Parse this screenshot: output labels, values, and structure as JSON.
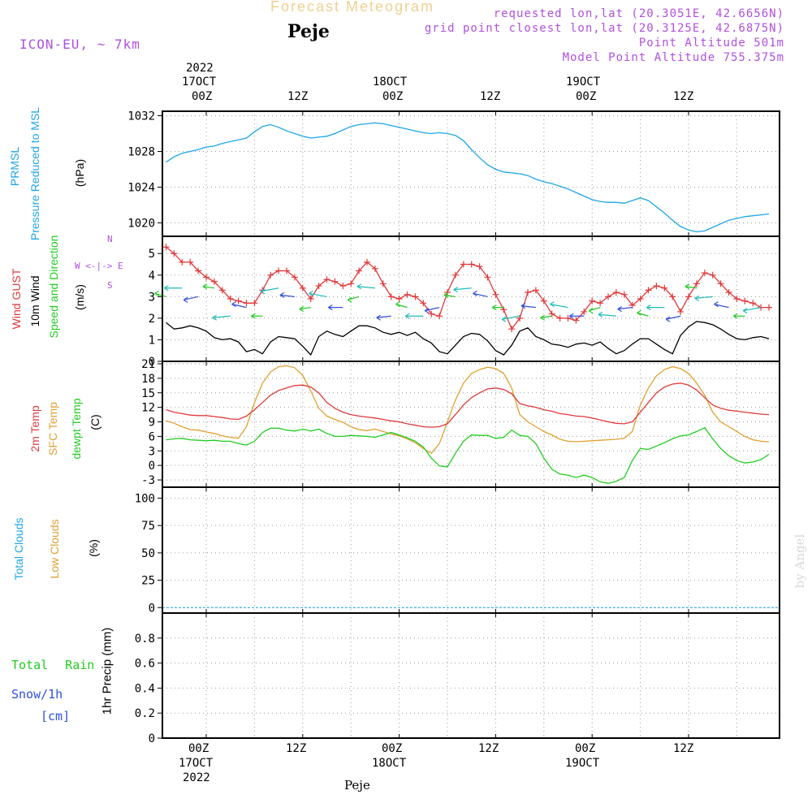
{
  "header": {
    "title": "Forecast Meteogram",
    "station": "Peje",
    "model": "ICON-EU, ~ 7km",
    "requested": "requested lon,lat (20.3051E, 42.6656N)",
    "grid_point": "grid point closest lon,lat (20.3125E, 42.6875N)",
    "point_alt": "Point Altitude 501m",
    "model_alt": "Model Point Altitude 755.375m",
    "footer_station": "Peje",
    "watermark": "by Angel"
  },
  "time_axis": {
    "top_year": "2022",
    "bottom_year": "2022",
    "labels": [
      {
        "hour": 0,
        "hz": "00Z",
        "date": "17OCT"
      },
      {
        "hour": 12,
        "hz": "12Z",
        "date": ""
      },
      {
        "hour": 24,
        "hz": "00Z",
        "date": "18OCT"
      },
      {
        "hour": 36,
        "hz": "12Z",
        "date": ""
      },
      {
        "hour": 48,
        "hz": "00Z",
        "date": "19OCT"
      },
      {
        "hour": 60,
        "hz": "12Z",
        "date": ""
      }
    ]
  },
  "colors": {
    "pressure": "#1ea6e6",
    "gust": "#e0393b",
    "wind": "#000000",
    "temp2m": "#e0393b",
    "sfc": "#e0a030",
    "dewpt": "#22cc22",
    "total_cloud": "#1ea6e6",
    "low_cloud": "#e0a030",
    "purple": "#b050e0"
  },
  "panels": {
    "pressure": {
      "l1": "PRMSL",
      "l2": "Pressure Reduced to MSL",
      "unit": "(hPa)"
    },
    "wind": {
      "l1": "Wind GUST",
      "l2": "10m Wind",
      "l3": "Speed and Direction",
      "unit": "(m/s)",
      "compass_ew": "W <-|-> E",
      "compass_n": "N",
      "compass_s": "S"
    },
    "temp": {
      "l1": "2m Temp",
      "l2": "SFC Temp",
      "l3": "dewpt Temp",
      "unit": "(C)"
    },
    "cloud": {
      "l1": "Total Clouds",
      "l2": "Low Clouds",
      "unit": "(%)"
    },
    "precip": {
      "rain": "Total Rain",
      "snow": "Snow/1h",
      "snow_unit": "[cm]",
      "axis": "1hr Precip (mm)"
    }
  },
  "chart_data": [
    {
      "type": "line",
      "title": "PRMSL Pressure Reduced to MSL",
      "ylabel": "(hPa)",
      "ylim": [
        1018.5,
        1032.5
      ],
      "yticks": [
        1020,
        1024,
        1028,
        1032
      ],
      "x": [
        -5,
        -4,
        -3,
        -2,
        -1,
        0,
        1,
        2,
        3,
        4,
        5,
        6,
        7,
        8,
        9,
        10,
        11,
        12,
        13,
        14,
        15,
        16,
        17,
        18,
        19,
        20,
        21,
        22,
        23,
        24,
        25,
        26,
        27,
        28,
        29,
        30,
        31,
        32,
        33,
        34,
        35,
        36,
        37,
        38,
        39,
        40,
        41,
        42,
        43,
        44,
        45,
        46,
        47,
        48,
        49,
        50,
        51,
        52,
        53,
        54,
        55,
        56,
        57,
        58,
        59,
        60,
        61,
        62,
        63,
        64,
        65,
        66,
        67,
        68,
        69,
        70
      ],
      "series": [
        {
          "name": "PRMSL",
          "values": [
            1026.8,
            1027.4,
            1027.8,
            1028.0,
            1028.2,
            1028.5,
            1028.6,
            1028.9,
            1029.1,
            1029.3,
            1029.5,
            1030.2,
            1030.8,
            1031.0,
            1030.7,
            1030.3,
            1030.0,
            1029.7,
            1029.5,
            1029.6,
            1029.7,
            1030.0,
            1030.4,
            1030.8,
            1031.0,
            1031.1,
            1031.2,
            1031.1,
            1030.9,
            1030.7,
            1030.5,
            1030.3,
            1030.1,
            1030.0,
            1030.1,
            1030.0,
            1029.8,
            1029.2,
            1028.2,
            1027.3,
            1026.5,
            1026.0,
            1025.7,
            1025.6,
            1025.5,
            1025.3,
            1024.9,
            1024.6,
            1024.4,
            1024.1,
            1023.8,
            1023.4,
            1023.0,
            1022.6,
            1022.4,
            1022.3,
            1022.3,
            1022.2,
            1022.5,
            1022.8,
            1022.5,
            1021.8,
            1021.1,
            1020.3,
            1019.6,
            1019.2,
            1019.0,
            1019.1,
            1019.5,
            1019.9,
            1020.3,
            1020.5,
            1020.7,
            1020.8,
            1020.9,
            1021.0
          ]
        }
      ]
    },
    {
      "type": "line",
      "title": "Wind GUST / 10m Wind Speed and Direction",
      "ylabel": "(m/s)",
      "ylim": [
        0,
        5.8
      ],
      "yticks": [
        0,
        1,
        2,
        3,
        4,
        5
      ],
      "x": [
        -5,
        -4,
        -3,
        -2,
        -1,
        0,
        1,
        2,
        3,
        4,
        5,
        6,
        7,
        8,
        9,
        10,
        11,
        12,
        13,
        14,
        15,
        16,
        17,
        18,
        19,
        20,
        21,
        22,
        23,
        24,
        25,
        26,
        27,
        28,
        29,
        30,
        31,
        32,
        33,
        34,
        35,
        36,
        37,
        38,
        39,
        40,
        41,
        42,
        43,
        44,
        45,
        46,
        47,
        48,
        49,
        50,
        51,
        52,
        53,
        54,
        55,
        56,
        57,
        58,
        59,
        60,
        61,
        62,
        63,
        64,
        65,
        66,
        67,
        68,
        69,
        70
      ],
      "series": [
        {
          "name": "Wind GUST",
          "values": [
            5.3,
            5.0,
            4.6,
            4.6,
            4.2,
            3.9,
            3.7,
            3.3,
            2.9,
            2.8,
            2.7,
            2.7,
            3.3,
            4.0,
            4.2,
            4.2,
            3.9,
            3.4,
            2.9,
            3.5,
            3.8,
            3.7,
            3.5,
            3.6,
            4.2,
            4.6,
            4.3,
            3.6,
            3.0,
            2.9,
            3.1,
            3.0,
            2.7,
            2.2,
            2.1,
            3.2,
            4.0,
            4.5,
            4.5,
            4.4,
            3.9,
            3.1,
            2.4,
            1.5,
            2.0,
            3.2,
            3.3,
            2.8,
            2.2,
            2.0,
            2.0,
            1.9,
            2.3,
            2.8,
            2.7,
            3.0,
            3.2,
            3.1,
            2.6,
            2.9,
            3.3,
            3.5,
            3.4,
            3.0,
            2.3,
            3.0,
            3.6,
            4.1,
            4.0,
            3.6,
            3.2,
            2.9,
            2.8,
            2.7,
            2.5,
            2.5
          ]
        },
        {
          "name": "10m Wind",
          "values": [
            1.8,
            1.5,
            1.55,
            1.65,
            1.55,
            1.4,
            1.1,
            1.0,
            1.05,
            0.9,
            0.45,
            0.55,
            0.35,
            0.9,
            1.15,
            1.1,
            1.05,
            0.7,
            0.3,
            1.15,
            1.4,
            1.25,
            1.15,
            1.4,
            1.65,
            1.65,
            1.55,
            1.35,
            1.25,
            1.35,
            1.2,
            1.35,
            1.05,
            0.85,
            0.45,
            0.35,
            0.75,
            1.15,
            1.3,
            1.25,
            0.95,
            0.5,
            0.3,
            0.75,
            1.4,
            1.55,
            1.15,
            1.0,
            0.8,
            0.75,
            0.65,
            0.8,
            0.85,
            0.75,
            0.9,
            0.6,
            0.35,
            0.5,
            0.8,
            1.05,
            1.05,
            0.8,
            0.55,
            0.35,
            1.2,
            1.6,
            1.85,
            1.8,
            1.7,
            1.5,
            1.25,
            1.05,
            1.0,
            1.1,
            1.15,
            1.05
          ]
        }
      ]
    },
    {
      "type": "line",
      "title": "2m Temp / SFC Temp / dewpt Temp",
      "ylabel": "(C)",
      "ylim": [
        -4.5,
        21.5
      ],
      "yticks": [
        -3,
        0,
        3,
        6,
        9,
        12,
        15,
        18,
        21
      ],
      "x": [
        -5,
        -4,
        -3,
        -2,
        -1,
        0,
        1,
        2,
        3,
        4,
        5,
        6,
        7,
        8,
        9,
        10,
        11,
        12,
        13,
        14,
        15,
        16,
        17,
        18,
        19,
        20,
        21,
        22,
        23,
        24,
        25,
        26,
        27,
        28,
        29,
        30,
        31,
        32,
        33,
        34,
        35,
        36,
        37,
        38,
        39,
        40,
        41,
        42,
        43,
        44,
        45,
        46,
        47,
        48,
        49,
        50,
        51,
        52,
        53,
        54,
        55,
        56,
        57,
        58,
        59,
        60,
        61,
        62,
        63,
        64,
        65,
        66,
        67,
        68,
        69,
        70
      ],
      "series": [
        {
          "name": "2m Temp",
          "values": [
            11.5,
            11.0,
            10.7,
            10.4,
            10.3,
            10.3,
            10.1,
            9.9,
            9.6,
            9.5,
            10.2,
            11.5,
            13.0,
            14.5,
            15.5,
            16.0,
            16.5,
            16.6,
            16.2,
            15.0,
            13.0,
            11.8,
            11.0,
            10.5,
            10.2,
            10.0,
            9.8,
            9.5,
            9.2,
            9.0,
            8.6,
            8.3,
            8.0,
            7.9,
            8.0,
            8.6,
            10.5,
            12.5,
            14.0,
            15.0,
            15.8,
            16.0,
            15.7,
            14.8,
            12.8,
            12.3,
            12.0,
            11.5,
            11.2,
            10.7,
            10.5,
            10.2,
            10.1,
            9.8,
            9.4,
            9.0,
            8.7,
            8.6,
            9.0,
            11.0,
            13.0,
            15.0,
            16.2,
            16.8,
            17.0,
            16.6,
            15.6,
            14.0,
            12.5,
            11.8,
            11.4,
            11.2,
            11.0,
            10.8,
            10.6,
            10.5
          ]
        },
        {
          "name": "SFC Temp",
          "values": [
            9.2,
            8.7,
            8.0,
            7.4,
            7.3,
            6.9,
            6.6,
            6.1,
            5.8,
            5.6,
            8.0,
            13.0,
            17.0,
            19.3,
            20.4,
            20.6,
            20.2,
            18.6,
            15.4,
            11.8,
            10.2,
            9.5,
            8.9,
            8.0,
            7.4,
            7.2,
            7.5,
            7.0,
            6.5,
            6.1,
            5.5,
            4.7,
            3.5,
            2.5,
            4.5,
            9.0,
            13.5,
            17.0,
            19.0,
            19.8,
            20.3,
            20.0,
            19.0,
            16.0,
            10.5,
            9.0,
            8.0,
            7.0,
            6.3,
            5.4,
            5.0,
            4.9,
            5.0,
            5.1,
            5.2,
            5.3,
            5.4,
            5.6,
            7.0,
            12.5,
            16.0,
            18.5,
            19.8,
            20.4,
            20.0,
            19.0,
            17.0,
            14.5,
            11.0,
            9.0,
            8.0,
            7.0,
            6.0,
            5.3,
            5.0,
            4.9
          ]
        },
        {
          "name": "dewpt Temp",
          "values": [
            5.3,
            5.5,
            5.6,
            5.3,
            5.2,
            5.1,
            5.2,
            5.0,
            5.0,
            4.5,
            4.2,
            5.0,
            6.8,
            7.7,
            7.7,
            7.3,
            7.1,
            7.5,
            7.1,
            7.5,
            6.6,
            6.0,
            6.0,
            6.2,
            6.1,
            6.0,
            5.8,
            6.3,
            6.8,
            6.3,
            5.7,
            5.0,
            3.8,
            1.5,
            -0.1,
            -0.3,
            2.5,
            5.0,
            6.3,
            6.2,
            6.2,
            5.6,
            5.8,
            7.3,
            6.2,
            6.0,
            4.5,
            1.5,
            -0.8,
            -1.8,
            -2.0,
            -2.5,
            -2.0,
            -2.5,
            -3.4,
            -3.7,
            -3.3,
            -2.5,
            1.0,
            3.5,
            3.3,
            4.0,
            4.7,
            5.5,
            6.1,
            6.3,
            7.0,
            7.8,
            5.5,
            3.5,
            2.0,
            1.0,
            0.5,
            0.7,
            1.2,
            2.3
          ]
        }
      ]
    },
    {
      "type": "bar",
      "title": "Total Clouds / Low Clouds",
      "ylabel": "(%)",
      "ylim": [
        -5,
        110
      ],
      "yticks": [
        0,
        25,
        50,
        75,
        100
      ],
      "x": [
        -5,
        -4,
        -3,
        -2,
        -1,
        0,
        1,
        2,
        3,
        4,
        5,
        6,
        7,
        8,
        9,
        10,
        11,
        12,
        13,
        14,
        15,
        16,
        17,
        18,
        19,
        20,
        21,
        22,
        23,
        24,
        25,
        26,
        27,
        28,
        29,
        30,
        31,
        32,
        33,
        34,
        35,
        36,
        37,
        38,
        39,
        40,
        41,
        42,
        43,
        44,
        45,
        46,
        47,
        48,
        49,
        50,
        51,
        52,
        53,
        54,
        55,
        56,
        57,
        58,
        59,
        60,
        61,
        62,
        63,
        64,
        65,
        66,
        67,
        68,
        69,
        70
      ],
      "series": [
        {
          "name": "Total Clouds",
          "values": [
            0,
            0,
            0,
            0,
            0,
            0,
            0,
            0,
            0,
            0,
            0,
            0,
            0,
            0,
            0,
            0,
            0,
            0,
            0,
            0,
            0,
            0,
            0,
            0,
            0,
            0,
            0,
            0,
            0,
            0,
            0,
            0,
            0,
            0,
            0,
            0,
            0,
            0,
            0,
            0,
            0,
            0,
            0,
            0,
            0,
            0,
            0,
            0,
            0,
            0,
            0,
            0,
            0,
            0,
            0,
            0,
            0,
            0,
            0,
            0,
            0,
            0,
            0,
            0,
            0,
            0,
            0,
            0,
            0,
            0,
            0,
            0,
            0,
            0,
            0,
            0
          ]
        },
        {
          "name": "Low Clouds",
          "values": [
            0,
            0,
            0,
            0,
            0,
            0,
            0,
            0,
            0,
            0,
            0,
            0,
            0,
            0,
            0,
            0,
            0,
            0,
            0,
            0,
            0,
            0,
            0,
            0,
            0,
            0,
            0,
            0,
            0,
            0,
            0,
            0,
            0,
            0,
            0,
            0,
            0,
            0,
            0,
            0,
            0,
            0,
            0,
            0,
            0,
            0,
            0,
            0,
            0,
            0,
            0,
            0,
            0,
            0,
            0,
            0,
            0,
            0,
            0,
            0,
            0,
            0,
            0,
            0,
            0,
            0,
            0,
            0,
            0,
            0,
            0,
            0,
            0,
            0,
            0,
            0
          ]
        }
      ]
    },
    {
      "type": "bar",
      "title": "1hr Precip",
      "ylabel": "1hr Precip (mm)",
      "ylim": [
        0,
        1.0
      ],
      "yticks": [
        0,
        0.2,
        0.4,
        0.6,
        0.8
      ],
      "series": [
        {
          "name": "Total Rain",
          "values": []
        },
        {
          "name": "Snow/1h",
          "values": []
        }
      ]
    }
  ]
}
